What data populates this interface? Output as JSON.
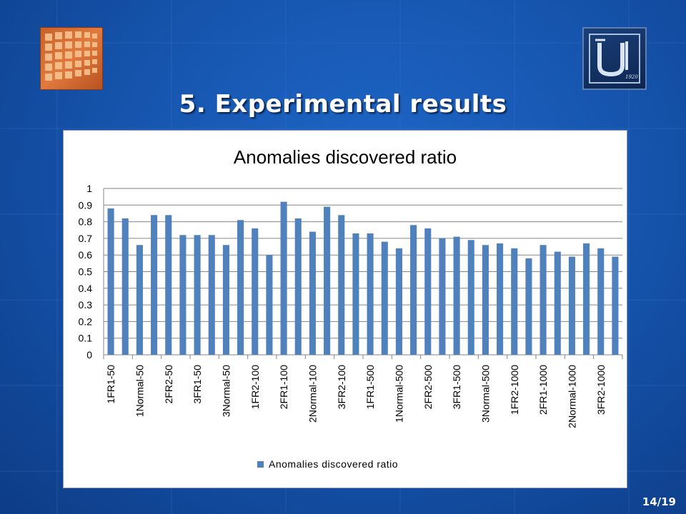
{
  "slide": {
    "title": "5. Experimental results",
    "page": "14/19",
    "logo_right_year": "1920"
  },
  "colors": {
    "bar": "#4f81bd",
    "background": "#1656b0",
    "gridline": "#868686"
  },
  "chart_data": {
    "type": "bar",
    "title": "Anomalies discovered ratio",
    "legend": {
      "label": "Anomalies discovered ratio",
      "position": "bottom"
    },
    "grid": true,
    "ylim": [
      0,
      1
    ],
    "yticks": [
      "0",
      "0.1",
      "0.2",
      "0.3",
      "0.4",
      "0.5",
      "0.6",
      "0.7",
      "0.8",
      "0.9",
      "1"
    ],
    "categories": [
      "1FR1-50",
      "",
      "1Normal-50",
      "",
      "2FR2-50",
      "",
      "3FR1-50",
      "",
      "3Normal-50",
      "",
      "1FR2-100",
      "",
      "2FR1-100",
      "",
      "2Normal-100",
      "",
      "3FR2-100",
      "",
      "1FR1-500",
      "",
      "1Normal-500",
      "",
      "2FR2-500",
      "",
      "3FR1-500",
      "",
      "3Normal-500",
      "",
      "1FR2-1000",
      "",
      "2FR1-1000",
      "",
      "2Normal-1000",
      "",
      "3FR2-1000",
      ""
    ],
    "series": [
      {
        "name": "Anomalies discovered ratio",
        "values": [
          0.88,
          0.82,
          0.66,
          0.84,
          0.84,
          0.72,
          0.72,
          0.72,
          0.66,
          0.81,
          0.76,
          0.6,
          0.92,
          0.82,
          0.74,
          0.89,
          0.84,
          0.73,
          0.73,
          0.68,
          0.64,
          0.78,
          0.76,
          0.7,
          0.71,
          0.69,
          0.66,
          0.67,
          0.64,
          0.58,
          0.66,
          0.62,
          0.59,
          0.67,
          0.64,
          0.59
        ]
      }
    ]
  }
}
